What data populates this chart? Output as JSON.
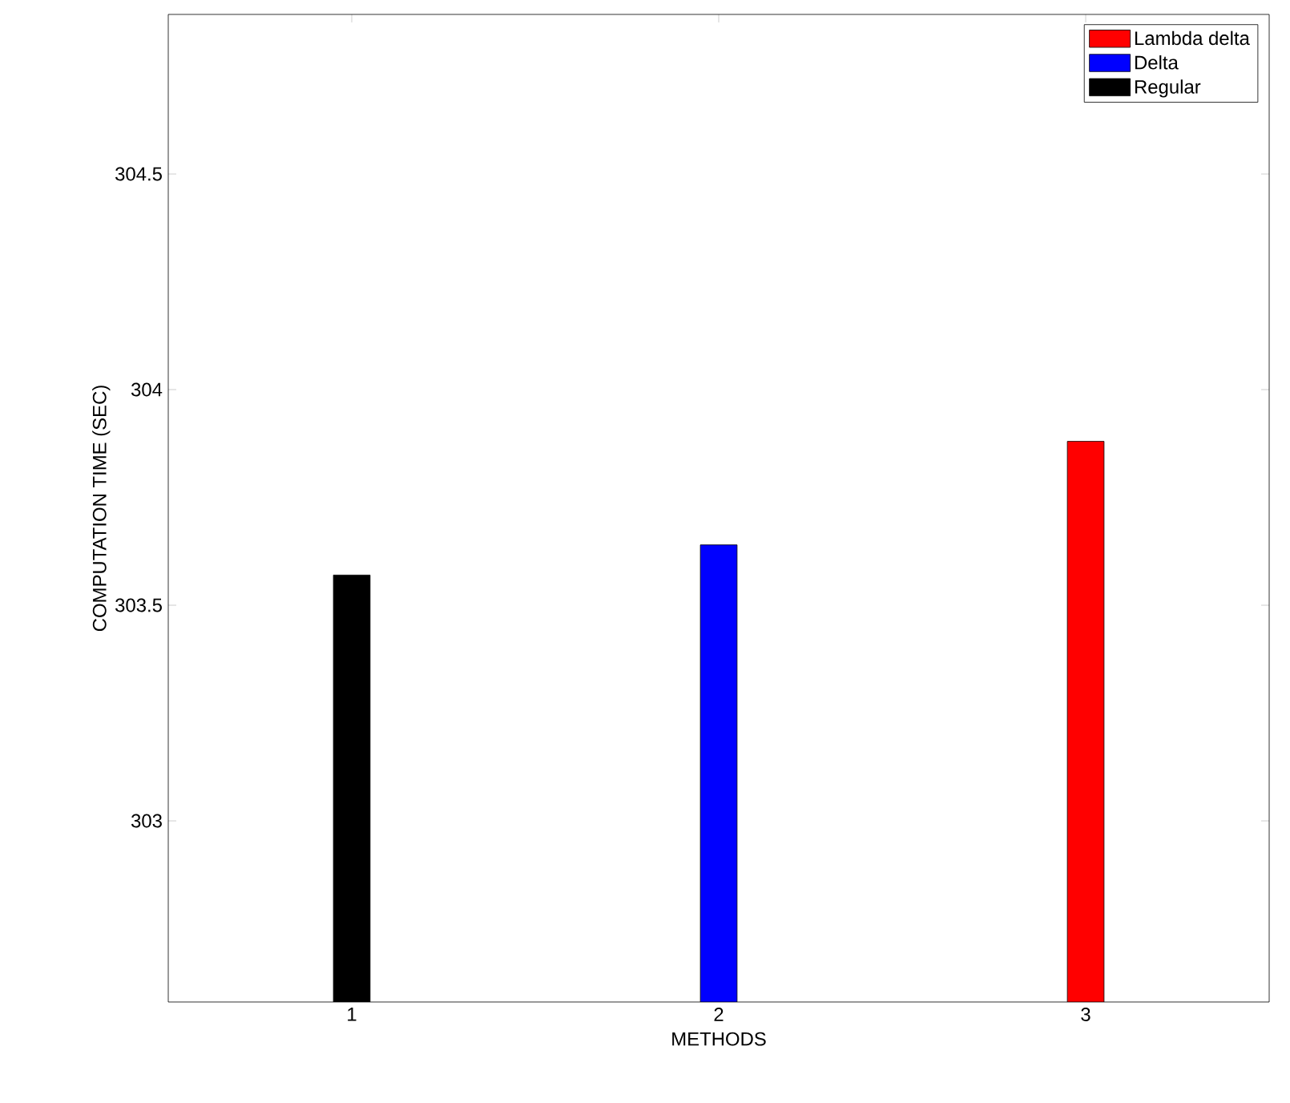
{
  "chart_data": {
    "type": "bar",
    "xlabel": "METHODS",
    "ylabel": "COMPUTATION TIME (SEC)",
    "x": [
      1,
      2,
      3
    ],
    "series": [
      {
        "name": "Lambda delta",
        "color": "#ff0000",
        "values": [
          null,
          null,
          303.88
        ]
      },
      {
        "name": "Delta",
        "color": "#0000ff",
        "values": [
          null,
          303.64,
          null
        ]
      },
      {
        "name": "Regular",
        "color": "#000000",
        "values": [
          303.57,
          null,
          null
        ]
      }
    ],
    "xlim": [
      0.5,
      3.5
    ],
    "xticks": [
      1,
      2,
      3
    ],
    "ylim": [
      302.58,
      304.87
    ],
    "yticks": [
      303,
      303.5,
      304,
      304.5
    ],
    "grid": false,
    "legend": "top right"
  }
}
